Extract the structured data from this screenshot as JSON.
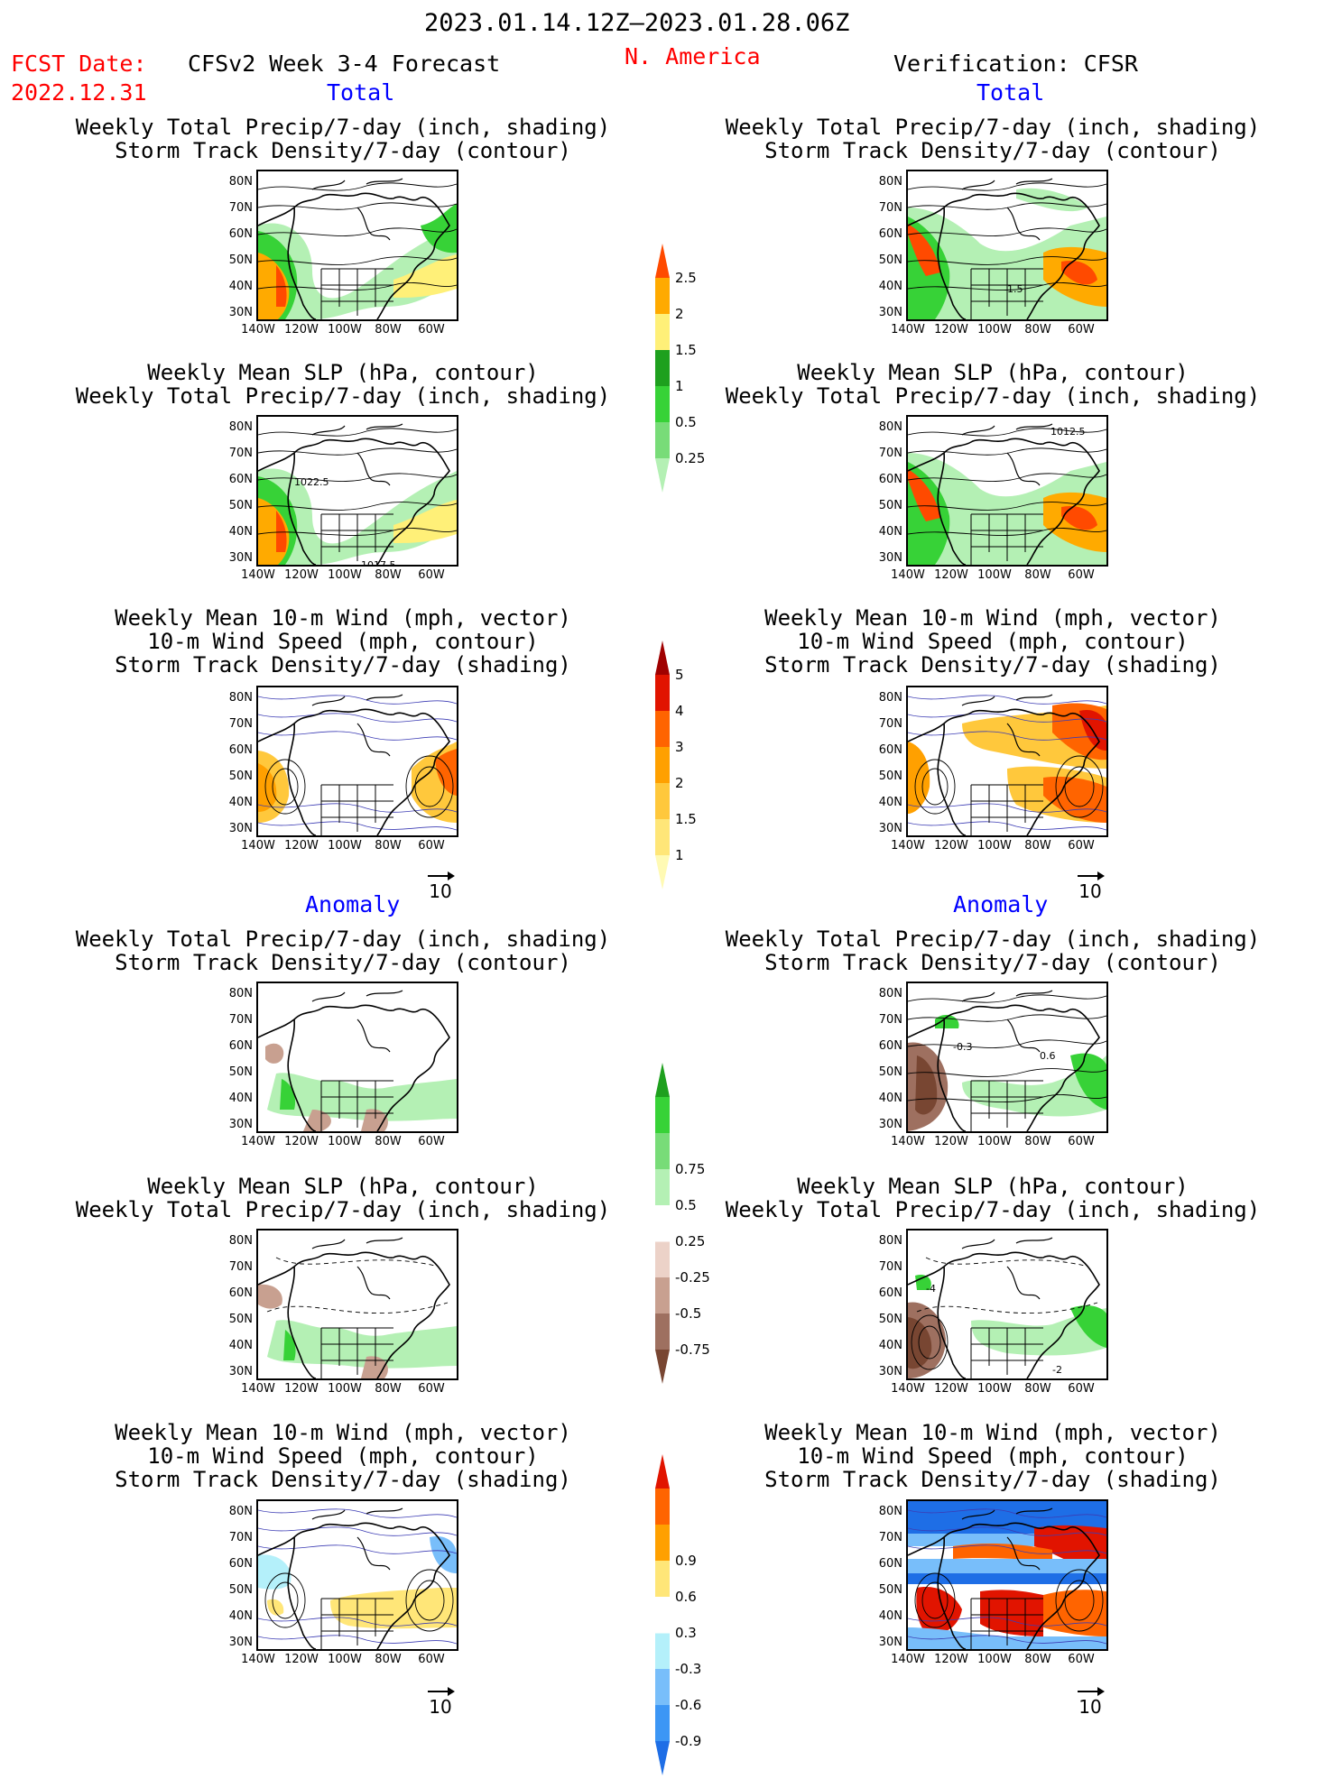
{
  "header": {
    "period": "2023.01.14.12Z–2023.01.28.06Z",
    "fcst_label": "FCST Date:",
    "fcst_date": "2022.12.31",
    "forecast_title": "CFSv2 Week 3-4 Forecast",
    "region": "N. America",
    "verification": "Verification: CFSR"
  },
  "sections": {
    "total": "Total",
    "anomaly": "Anomaly"
  },
  "titles": {
    "precip_storm": [
      "Weekly Total Precip/7-day (inch, shading)",
      "Storm Track Density/7-day (contour)"
    ],
    "slp_precip": [
      "Weekly Mean SLP (hPa, contour)",
      "Weekly Total Precip/7-day (inch, shading)"
    ],
    "wind_storm": [
      "Weekly Mean 10-m Wind (mph, vector)",
      "10-m Wind Speed (mph, contour)",
      "Storm Track Density/7-day (shading)"
    ]
  },
  "axes": {
    "lat": [
      "80N",
      "70N",
      "60N",
      "50N",
      "40N",
      "30N"
    ],
    "lon": [
      "140W",
      "120W",
      "100W",
      "80W",
      "60W"
    ]
  },
  "vector_ref": "10",
  "map_labels": {
    "fc_slp_a": "1022.5",
    "fc_slp_b": "1017.5",
    "ob_slp_a": "1012.5",
    "ob_precip_a": "1.5",
    "ob_anom_a": "-0.3",
    "ob_anom_b": "0.6",
    "ob_anom_c": "-4",
    "ob_anom_d": "-2"
  },
  "colorbars": {
    "precip_total": {
      "ticks": [
        "0.25",
        "0.5",
        "1",
        "1.5",
        "2",
        "2.5"
      ],
      "colors": [
        "#b4f0b4",
        "#78dc78",
        "#37d237",
        "#1ea01e",
        "#fff078",
        "#ffaa00",
        "#ff4a00"
      ]
    },
    "storm_total": {
      "ticks": [
        "1",
        "1.5",
        "2",
        "3",
        "4",
        "5"
      ],
      "colors": [
        "#fffab4",
        "#ffe678",
        "#ffc83c",
        "#ffa000",
        "#ff6400",
        "#e11400",
        "#a00000"
      ]
    },
    "precip_anom": {
      "ticks": [
        "-0.75",
        "-0.5",
        "-0.25",
        "0.25",
        "0.5",
        "0.75"
      ],
      "colors": [
        "#784632",
        "#9e7060",
        "#c8a090",
        "#ecd2c8",
        "#ffffff",
        "#b4f0b4",
        "#78dc78",
        "#37d237",
        "#1ea01e"
      ]
    },
    "storm_anom": {
      "ticks": [
        "-0.9",
        "-0.6",
        "-0.3",
        "0.3",
        "0.6",
        "0.9"
      ],
      "colors": [
        "#1e6ee6",
        "#3c96f5",
        "#78befa",
        "#b4f0fa",
        "#ffffff",
        "#ffe678",
        "#ffa000",
        "#ff6400",
        "#e11400"
      ]
    }
  }
}
